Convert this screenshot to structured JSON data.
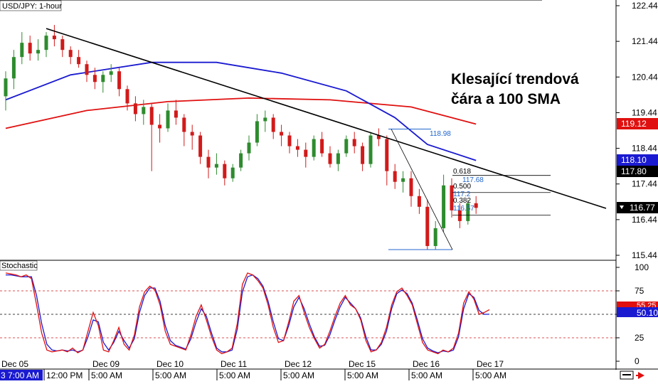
{
  "header": {
    "symbol_label": "USD/JPY: 1-hour"
  },
  "annotation": {
    "line1": "Klesající trendová",
    "line2": "čára a 100 SMA"
  },
  "price_axis": {
    "ticks": [
      "122.44",
      "121.44",
      "120.44",
      "119.44",
      "118.44",
      "117.44",
      "116.44",
      "115.44"
    ],
    "badges": {
      "sma200": "119.12",
      "sma100": "118.10",
      "level": "117.80",
      "current": "116.77"
    }
  },
  "stoch_panel": {
    "title": "Stochastic",
    "ticks": [
      "100",
      "75",
      "50",
      "25",
      "0"
    ],
    "badges": {
      "red": "55.25",
      "blue": "50.10"
    }
  },
  "time_axis": {
    "labels": [
      "Dec 05",
      "Dec 09",
      "Dec 10",
      "Dec 11",
      "Dec 12",
      "Dec 15",
      "Dec 16",
      "Dec 17"
    ],
    "sublabels": [
      "3 7:00 AM",
      "12:00 PM",
      "5:00 AM",
      "5:00 AM",
      "5:00 AM",
      "5:00 AM",
      "5:00 AM",
      "5:00 AM",
      "5:00 AM"
    ]
  },
  "fib_labels": {
    "top": "118.98",
    "f618": "0.618",
    "p618": "117.68",
    "f500": "0.500",
    "p500": "117.2",
    "f382": "0.382",
    "p382": "116.57"
  },
  "colors": {
    "candle_up": "#2e8b2e",
    "candle_down": "#d11a1a",
    "sma100": "#1a1ad1",
    "sma200": "#e01010",
    "trendline": "#000000",
    "stoch_k": "#e01010",
    "stoch_d": "#1a1ad1",
    "fib": "#2266cc"
  },
  "chart_data": {
    "type": "candlestick",
    "instrument": "USD/JPY",
    "timeframe": "1-hour",
    "ylim": [
      115.2,
      122.6
    ],
    "candles": [
      [
        0,
        119.9,
        120.6,
        119.5,
        120.4
      ],
      [
        1,
        120.4,
        121.2,
        120.1,
        121.0
      ],
      [
        2,
        121.0,
        121.7,
        120.8,
        121.4
      ],
      [
        3,
        121.4,
        121.6,
        120.9,
        121.1
      ],
      [
        4,
        121.1,
        121.5,
        120.9,
        121.2
      ],
      [
        5,
        121.2,
        121.7,
        121.0,
        121.6
      ],
      [
        6,
        121.6,
        121.9,
        121.3,
        121.5
      ],
      [
        7,
        121.5,
        121.6,
        121.0,
        121.2
      ],
      [
        8,
        121.2,
        121.3,
        120.8,
        121.0
      ],
      [
        9,
        121.0,
        121.2,
        120.7,
        120.8
      ],
      [
        10,
        120.8,
        120.9,
        120.3,
        120.5
      ],
      [
        11,
        120.5,
        120.7,
        120.1,
        120.3
      ],
      [
        12,
        120.3,
        120.6,
        120.0,
        120.5
      ],
      [
        13,
        120.5,
        120.8,
        120.3,
        120.6
      ],
      [
        14,
        120.6,
        120.7,
        119.9,
        120.1
      ],
      [
        15,
        120.1,
        120.2,
        119.5,
        119.7
      ],
      [
        16,
        119.7,
        119.9,
        119.2,
        119.4
      ],
      [
        17,
        119.4,
        119.8,
        119.1,
        119.6
      ],
      [
        18,
        119.6,
        119.7,
        117.8,
        119.1
      ],
      [
        19,
        119.1,
        119.4,
        118.6,
        119.0
      ],
      [
        20,
        119.0,
        119.7,
        118.9,
        119.5
      ],
      [
        21,
        119.5,
        119.8,
        119.1,
        119.3
      ],
      [
        22,
        119.3,
        119.4,
        118.5,
        118.9
      ],
      [
        23,
        118.9,
        119.1,
        118.4,
        118.8
      ],
      [
        24,
        118.8,
        118.9,
        118.0,
        118.2
      ],
      [
        25,
        118.2,
        118.4,
        117.6,
        117.9
      ],
      [
        26,
        117.9,
        118.3,
        117.7,
        118.0
      ],
      [
        27,
        118.0,
        118.1,
        117.4,
        117.6
      ],
      [
        28,
        117.6,
        118.0,
        117.5,
        117.9
      ],
      [
        29,
        117.9,
        118.4,
        117.8,
        118.3
      ],
      [
        30,
        118.3,
        118.8,
        118.1,
        118.6
      ],
      [
        31,
        118.6,
        119.4,
        118.5,
        119.2
      ],
      [
        32,
        119.2,
        119.5,
        118.9,
        119.3
      ],
      [
        33,
        119.3,
        119.4,
        118.7,
        118.9
      ],
      [
        34,
        118.9,
        119.1,
        118.5,
        118.8
      ],
      [
        35,
        118.8,
        118.9,
        118.3,
        118.5
      ],
      [
        36,
        118.5,
        118.7,
        118.2,
        118.4
      ],
      [
        37,
        118.4,
        118.6,
        117.9,
        118.2
      ],
      [
        38,
        118.2,
        118.8,
        118.1,
        118.7
      ],
      [
        39,
        118.7,
        118.9,
        118.2,
        118.3
      ],
      [
        40,
        118.3,
        118.5,
        117.9,
        118.0
      ],
      [
        41,
        118.0,
        118.4,
        117.8,
        118.3
      ],
      [
        42,
        118.3,
        118.8,
        118.2,
        118.7
      ],
      [
        43,
        118.7,
        118.9,
        118.3,
        118.5
      ],
      [
        44,
        118.5,
        118.6,
        117.8,
        118.0
      ],
      [
        45,
        118.0,
        118.9,
        117.9,
        118.8
      ],
      [
        46,
        118.8,
        119.0,
        118.5,
        118.7
      ],
      [
        47,
        118.7,
        118.8,
        117.4,
        117.8
      ],
      [
        48,
        117.8,
        118.0,
        117.3,
        117.5
      ],
      [
        49,
        117.5,
        117.8,
        117.2,
        117.6
      ],
      [
        50,
        117.6,
        117.8,
        116.8,
        117.1
      ],
      [
        51,
        117.1,
        117.3,
        116.6,
        116.8
      ],
      [
        52,
        116.8,
        117.0,
        115.6,
        115.7
      ],
      [
        53,
        115.7,
        116.4,
        115.6,
        116.2
      ],
      [
        54,
        116.2,
        117.7,
        116.1,
        117.4
      ],
      [
        55,
        117.4,
        117.6,
        116.5,
        116.7
      ],
      [
        56,
        116.7,
        116.9,
        116.2,
        116.4
      ],
      [
        57,
        116.4,
        117.0,
        116.3,
        116.9
      ],
      [
        58,
        116.9,
        117.1,
        116.6,
        116.77
      ]
    ],
    "sma100": [
      [
        0,
        119.8
      ],
      [
        8,
        120.5
      ],
      [
        18,
        120.85
      ],
      [
        26,
        120.85
      ],
      [
        34,
        120.55
      ],
      [
        42,
        120.05
      ],
      [
        48,
        119.3
      ],
      [
        52,
        118.55
      ],
      [
        58,
        118.1
      ]
    ],
    "sma200": [
      [
        0,
        119.0
      ],
      [
        10,
        119.5
      ],
      [
        20,
        119.75
      ],
      [
        30,
        119.85
      ],
      [
        40,
        119.8
      ],
      [
        50,
        119.6
      ],
      [
        58,
        119.12
      ]
    ],
    "trendline": [
      [
        5,
        121.8
      ],
      [
        69,
        116.8
      ]
    ],
    "fibonacci": {
      "high": 118.98,
      "low": 115.6,
      "levels": [
        {
          "ratio": 0.618,
          "price": 117.68
        },
        {
          "ratio": 0.5,
          "price": 117.2
        },
        {
          "ratio": 0.382,
          "price": 116.57
        }
      ]
    },
    "stochastic": {
      "ylim": [
        0,
        100
      ],
      "levels": [
        75,
        50,
        25
      ],
      "k": [
        94,
        93,
        92,
        90,
        92,
        88,
        60,
        30,
        12,
        10,
        11,
        12,
        10,
        14,
        9,
        12,
        32,
        52,
        38,
        12,
        10,
        22,
        36,
        18,
        12,
        28,
        58,
        74,
        80,
        76,
        60,
        32,
        18,
        16,
        14,
        12,
        28,
        48,
        60,
        44,
        26,
        12,
        8,
        10,
        14,
        40,
        82,
        94,
        92,
        86,
        78,
        60,
        36,
        20,
        22,
        42,
        64,
        70,
        52,
        36,
        24,
        14,
        18,
        32,
        48,
        62,
        70,
        60,
        56,
        44,
        22,
        10,
        12,
        20,
        36,
        60,
        74,
        78,
        70,
        60,
        40,
        20,
        12,
        10,
        8,
        12,
        10,
        14,
        30,
        62,
        74,
        66,
        50,
        52,
        55
      ],
      "d": [
        92,
        92,
        91,
        90,
        90,
        90,
        70,
        40,
        18,
        12,
        11,
        12,
        11,
        12,
        10,
        12,
        26,
        44,
        42,
        20,
        12,
        20,
        32,
        22,
        14,
        24,
        52,
        70,
        78,
        78,
        64,
        38,
        22,
        17,
        15,
        13,
        24,
        42,
        56,
        48,
        30,
        14,
        10,
        10,
        12,
        34,
        74,
        90,
        92,
        88,
        80,
        64,
        42,
        24,
        22,
        38,
        58,
        68,
        56,
        40,
        26,
        16,
        17,
        28,
        44,
        58,
        68,
        62,
        56,
        46,
        26,
        12,
        12,
        18,
        32,
        56,
        72,
        76,
        72,
        62,
        44,
        24,
        14,
        11,
        9,
        11,
        10,
        12,
        26,
        56,
        72,
        68,
        54,
        50,
        50.1
      ]
    },
    "time_labels": [
      "Dec 05",
      "Dec 09",
      "Dec 10",
      "Dec 11",
      "Dec 12",
      "Dec 15",
      "Dec 16",
      "Dec 17"
    ]
  }
}
